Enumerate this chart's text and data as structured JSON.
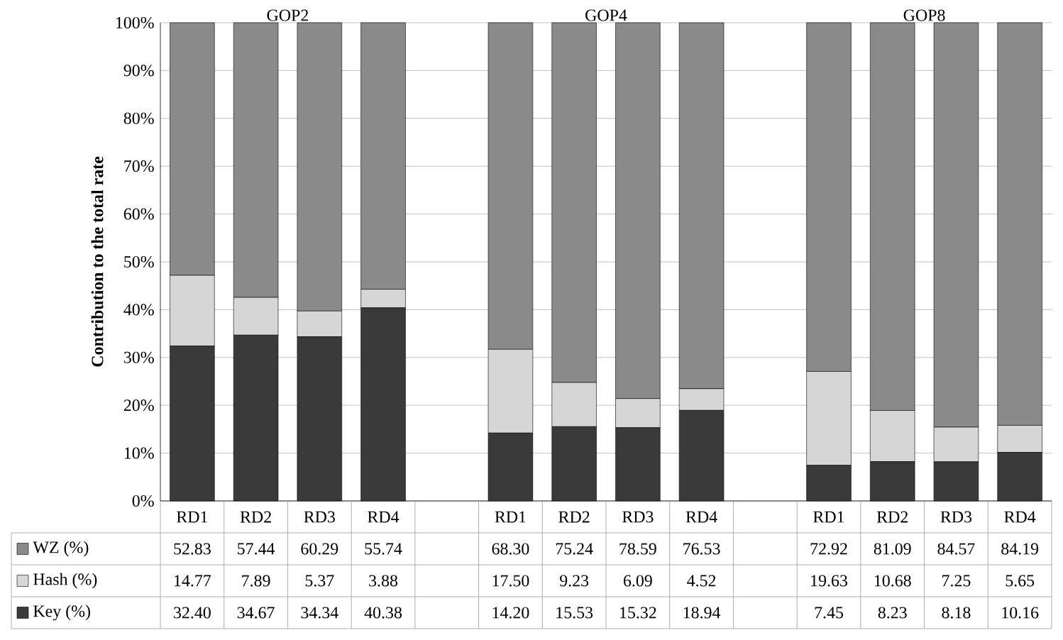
{
  "chart_data": {
    "type": "bar",
    "stacked": true,
    "ylabel": "Contribution to the total rate",
    "categories": [
      "RD1",
      "RD2",
      "RD3",
      "RD4",
      null,
      "RD1",
      "RD2",
      "RD3",
      "RD4",
      null,
      "RD1",
      "RD2",
      "RD3",
      "RD4"
    ],
    "series": [
      {
        "name": "Key (%)",
        "color": "#3a3a3a",
        "values": [
          32.4,
          34.67,
          34.34,
          40.38,
          null,
          14.2,
          15.53,
          15.32,
          18.94,
          null,
          7.45,
          8.23,
          8.18,
          10.16
        ],
        "value_labels": [
          "32.40",
          "34.67",
          "34.34",
          "40.38",
          null,
          "14.20",
          "15.53",
          "15.32",
          "18.94",
          null,
          "7.45",
          "8.23",
          "8.18",
          "10.16"
        ]
      },
      {
        "name": "Hash (%)",
        "color": "#d6d6d6",
        "values": [
          14.77,
          7.89,
          5.37,
          3.88,
          null,
          17.5,
          9.23,
          6.09,
          4.52,
          null,
          19.63,
          10.68,
          7.25,
          5.65
        ],
        "value_labels": [
          "14.77",
          "7.89",
          "5.37",
          "3.88",
          null,
          "17.50",
          "9.23",
          "6.09",
          "4.52",
          null,
          "19.63",
          "10.68",
          "7.25",
          "5.65"
        ]
      },
      {
        "name": "WZ (%)",
        "color": "#8a8a8a",
        "values": [
          52.83,
          57.44,
          60.29,
          55.74,
          null,
          68.3,
          75.24,
          78.59,
          76.53,
          null,
          72.92,
          81.09,
          84.57,
          84.19
        ],
        "value_labels": [
          "52.83",
          "57.44",
          "60.29",
          "55.74",
          null,
          "68.30",
          "75.24",
          "78.59",
          "76.53",
          null,
          "72.92",
          "81.09",
          "84.57",
          "84.19"
        ]
      }
    ],
    "ylim": [
      0,
      100
    ],
    "yticks": [
      {
        "value": 0,
        "label": "0%"
      },
      {
        "value": 10,
        "label": "10%"
      },
      {
        "value": 20,
        "label": "20%"
      },
      {
        "value": 30,
        "label": "30%"
      },
      {
        "value": 40,
        "label": "40%"
      },
      {
        "value": 50,
        "label": "50%"
      },
      {
        "value": 60,
        "label": "60%"
      },
      {
        "value": 70,
        "label": "70%"
      },
      {
        "value": 80,
        "label": "80%"
      },
      {
        "value": 90,
        "label": "90%"
      },
      {
        "value": 100,
        "label": "100%"
      }
    ],
    "grid": "y",
    "legend": "bottom left",
    "annotations": [
      "GOP2",
      "GOP4",
      "GOP8"
    ]
  }
}
